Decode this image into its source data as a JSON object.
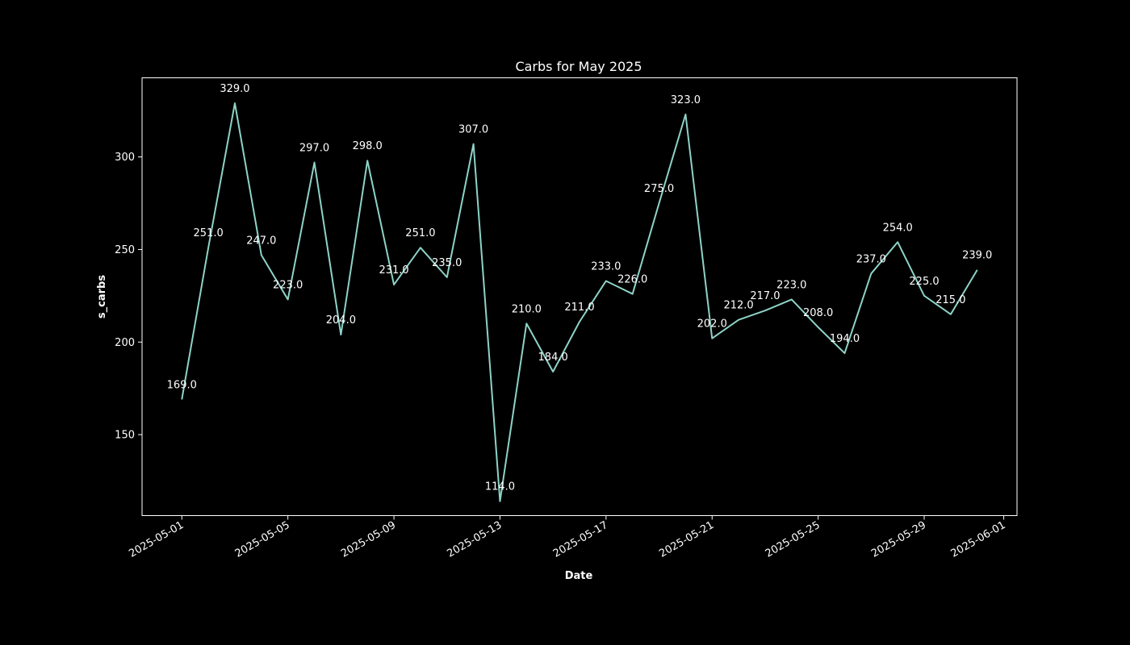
{
  "chart_data": {
    "type": "line",
    "title": "Carbs for May 2025",
    "xlabel": "Date",
    "ylabel": "s_carbs",
    "x": [
      "2025-05-01",
      "2025-05-02",
      "2025-05-03",
      "2025-05-04",
      "2025-05-05",
      "2025-05-06",
      "2025-05-07",
      "2025-05-08",
      "2025-05-09",
      "2025-05-10",
      "2025-05-11",
      "2025-05-12",
      "2025-05-13",
      "2025-05-14",
      "2025-05-15",
      "2025-05-16",
      "2025-05-17",
      "2025-05-18",
      "2025-05-19",
      "2025-05-20",
      "2025-05-21",
      "2025-05-22",
      "2025-05-23",
      "2025-05-24",
      "2025-05-25",
      "2025-05-26",
      "2025-05-27",
      "2025-05-28",
      "2025-05-29",
      "2025-05-30",
      "2025-05-31"
    ],
    "values": [
      169,
      251,
      329,
      247,
      223,
      297,
      204,
      298,
      231,
      251,
      235,
      307,
      114,
      210,
      184,
      211,
      233,
      226,
      275,
      323,
      202,
      212,
      217,
      223,
      208,
      194,
      237,
      254,
      225,
      215,
      239
    ],
    "data_labels": [
      "169.0",
      "251.0",
      "329.0",
      "247.0",
      "223.0",
      "297.0",
      "204.0",
      "298.0",
      "231.0",
      "251.0",
      "235.0",
      "307.0",
      "114.0",
      "210.0",
      "184.0",
      "211.0",
      "233.0",
      "226.0",
      "275.0",
      "323.0",
      "202.0",
      "212.0",
      "217.0",
      "223.0",
      "208.0",
      "194.0",
      "237.0",
      "254.0",
      "225.0",
      "215.0",
      "239.0"
    ],
    "x_ticks": [
      "2025-05-01",
      "2025-05-05",
      "2025-05-09",
      "2025-05-13",
      "2025-05-17",
      "2025-05-21",
      "2025-05-25",
      "2025-05-29",
      "2025-06-01"
    ],
    "y_ticks": [
      150,
      200,
      250,
      300
    ],
    "xlim": [
      "2025-04-29.5",
      "2025-06-01.5"
    ],
    "ylim": [
      106.25,
      342.75
    ],
    "grid": false,
    "line_color": "#8dd3c7",
    "background": "#000000",
    "foreground": "#ffffff"
  }
}
